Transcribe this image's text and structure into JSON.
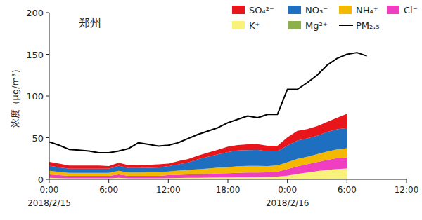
{
  "chart_data": {
    "type": "area",
    "title": "郑州",
    "stacked": true,
    "legend": "top-right",
    "grid": false,
    "ylabel": "浓度（μg/m³）",
    "x": [
      0,
      1,
      2,
      3,
      4,
      5,
      6,
      7,
      8,
      9,
      10,
      11,
      12,
      13,
      14,
      15,
      16,
      17,
      18,
      19,
      20,
      21,
      22,
      23,
      24,
      25,
      26,
      27,
      28,
      29,
      30,
      31,
      32
    ],
    "xlim": [
      0,
      36
    ],
    "xticks": [
      {
        "value": 0,
        "label": "0:00"
      },
      {
        "value": 6,
        "label": "6:00"
      },
      {
        "value": 12,
        "label": "12:00"
      },
      {
        "value": 18,
        "label": "18:00"
      },
      {
        "value": 24,
        "label": "0:00"
      },
      {
        "value": 30,
        "label": "6:00"
      },
      {
        "value": 36,
        "label": "12:00"
      }
    ],
    "annotations": [
      {
        "text": "2018/2/15",
        "x": 0
      },
      {
        "text": "2018/2/16",
        "x": 24
      }
    ],
    "ylim": [
      0,
      200
    ],
    "yticks": [
      0,
      50,
      100,
      150,
      200
    ],
    "series": [
      {
        "name": "Mg²⁺",
        "color": "#8db04a",
        "values": [
          0.3,
          0.3,
          0.3,
          0.3,
          0.3,
          0.3,
          0.3,
          0.3,
          0.3,
          0.3,
          0.3,
          0.3,
          0.3,
          0.3,
          0.3,
          0.3,
          0.3,
          0.3,
          0.3,
          0.3,
          0.3,
          0.3,
          0.3,
          0.3,
          0.5,
          0.6,
          0.7,
          0.8,
          0.9,
          1.0,
          1.0,
          null,
          null
        ]
      },
      {
        "name": "K⁺",
        "color": "#f8f27a",
        "values": [
          1.5,
          1.2,
          1,
          1,
          1,
          1,
          1,
          1.5,
          1,
          1,
          1,
          1,
          1.2,
          1.3,
          1.5,
          1.6,
          1.8,
          2,
          2,
          2.2,
          2.3,
          2.4,
          2.6,
          3,
          4,
          6,
          7.5,
          9,
          10.5,
          11.5,
          12,
          null,
          null
        ]
      },
      {
        "name": "Cl⁻",
        "color": "#ef3ec0",
        "values": [
          4,
          3.5,
          3,
          3,
          3,
          3,
          3,
          4,
          3,
          3,
          3,
          3,
          3.5,
          3.8,
          4,
          4.2,
          4.5,
          4.8,
          5,
          5.2,
          5.5,
          5.5,
          5.5,
          6,
          8,
          9,
          10,
          11,
          12,
          13,
          13.5,
          null,
          null
        ]
      },
      {
        "name": "NH₄⁺",
        "color": "#f5b800",
        "values": [
          4.5,
          4,
          3.5,
          3.5,
          3.5,
          3.5,
          3.5,
          4.5,
          3.8,
          3.8,
          4,
          4,
          4.5,
          5,
          5.5,
          6,
          6.5,
          7,
          7.5,
          8,
          8,
          8,
          7.5,
          7.5,
          8,
          9,
          9,
          9.5,
          10,
          10.5,
          11,
          null,
          null
        ]
      },
      {
        "name": "NO₃⁻",
        "color": "#1f6fc0",
        "values": [
          6,
          5.5,
          5,
          5,
          5,
          5,
          5,
          6,
          5.5,
          5.5,
          5.5,
          6,
          6.5,
          7.5,
          9,
          12,
          14,
          16,
          18,
          19,
          19,
          19,
          18,
          17,
          20,
          22,
          22,
          22,
          23.5,
          24,
          24,
          null,
          null
        ]
      },
      {
        "name": "SO₄²⁻",
        "color": "#e8161b",
        "values": [
          4.7,
          4.5,
          3.7,
          3.7,
          3.7,
          3.7,
          3.2,
          3.7,
          3.4,
          3.4,
          3.7,
          3.7,
          3,
          4,
          4,
          4.5,
          5,
          5.5,
          6.5,
          6.5,
          7,
          7,
          6.5,
          6.5,
          10,
          11.5,
          11,
          11.5,
          12,
          14,
          17,
          null,
          null
        ]
      },
      {
        "name": "PM₂.₅",
        "color": "#000000",
        "type": "line",
        "values": [
          45,
          41,
          36,
          35,
          34,
          32,
          32,
          34,
          37,
          44,
          42,
          40,
          41,
          44,
          49,
          54,
          58,
          62,
          68,
          72,
          76,
          74,
          78,
          78,
          108,
          108,
          116,
          125,
          137,
          145,
          150,
          152,
          148
        ]
      }
    ]
  }
}
